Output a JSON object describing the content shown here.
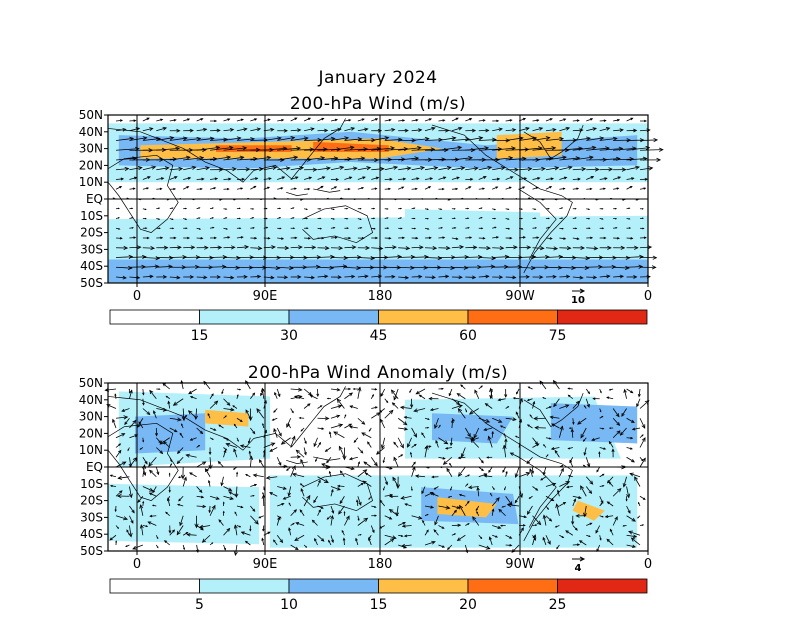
{
  "titles": {
    "month": "January 2024",
    "top_panel": "200-hPa Wind (m/s)",
    "bottom_panel": "200-hPa Wind Anomaly (m/s)"
  },
  "axes": {
    "lat_labels": [
      "50N",
      "40N",
      "30N",
      "20N",
      "10N",
      "EQ",
      "10S",
      "20S",
      "30S",
      "40S",
      "50S"
    ],
    "lon_labels": [
      "0",
      "90E",
      "180",
      "90W",
      "0"
    ]
  },
  "top_panel": {
    "reference_vector": "10",
    "colorbar": {
      "ticks": [
        "15",
        "30",
        "45",
        "60",
        "75"
      ],
      "colors": [
        "#ffffff",
        "#b4f0fa",
        "#78b9f5",
        "#ffbe46",
        "#ff6e14",
        "#e12814"
      ]
    }
  },
  "bottom_panel": {
    "reference_vector": "4",
    "colorbar": {
      "ticks": [
        "5",
        "10",
        "15",
        "20",
        "25"
      ],
      "colors": [
        "#ffffff",
        "#b4f0fa",
        "#78b9f5",
        "#ffbe46",
        "#ff6e14",
        "#e12814"
      ]
    }
  }
}
